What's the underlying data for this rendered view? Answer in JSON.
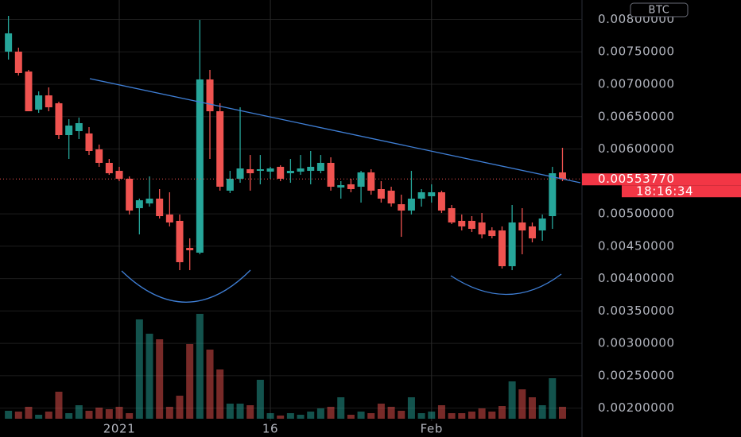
{
  "chart_data": {
    "type": "candlestick",
    "currency": "BTC",
    "categories": [
      null,
      null,
      null,
      null,
      null,
      null,
      null,
      null,
      null,
      null,
      null,
      "2021",
      null,
      null,
      null,
      null,
      null,
      null,
      null,
      null,
      null,
      null,
      null,
      null,
      null,
      null,
      "16",
      null,
      null,
      null,
      null,
      null,
      null,
      null,
      null,
      null,
      null,
      null,
      null,
      null,
      null,
      null,
      "Feb",
      null,
      null,
      null,
      null,
      null,
      null,
      null,
      null,
      null,
      null,
      null,
      null,
      null
    ],
    "open": [
      0.007503,
      0.007503,
      0.007196,
      0.006608,
      0.006828,
      0.006706,
      0.006215,
      0.006276,
      0.00624,
      0.005994,
      0.005786,
      0.005663,
      0.005541,
      0.005087,
      0.00516,
      0.005234,
      0.004989,
      0.004891,
      0.004474,
      0.0044,
      0.007074,
      0.006583,
      0.005357,
      0.005541,
      0.005688,
      0.005663,
      0.005651,
      0.005725,
      0.005626,
      0.005651,
      0.005663,
      0.005663,
      0.005786,
      0.005406,
      0.005455,
      0.005418,
      0.005639,
      0.005381,
      0.005357,
      0.005148,
      0.00505,
      0.005234,
      0.005271,
      0.005332,
      0.005087,
      0.004891,
      0.004891,
      0.004866,
      0.004743,
      0.004743,
      0.004191,
      0.004866,
      0.004805,
      0.004743,
      0.004964,
      0.005639
    ],
    "high": [
      0.008055,
      0.007564,
      0.007221,
      0.00689,
      0.006951,
      0.00673,
      0.00646,
      0.006485,
      0.006338,
      0.006068,
      0.005847,
      0.005725,
      0.005577,
      0.005234,
      0.005577,
      0.005381,
      0.005332,
      0.004989,
      0.004621,
      0.007993,
      0.007221,
      0.006706,
      0.005663,
      0.006644,
      0.005908,
      0.005908,
      0.005725,
      0.005749,
      0.005847,
      0.005908,
      0.00597,
      0.005908,
      0.005872,
      0.005504,
      0.005541,
      0.005663,
      0.005688,
      0.005504,
      0.005418,
      0.005295,
      0.005663,
      0.005381,
      0.005455,
      0.005357,
      0.005136,
      0.004989,
      0.004964,
      0.005013,
      0.004792,
      0.004805,
      0.005136,
      0.005087,
      0.004866,
      0.004989,
      0.005725,
      0.006019
    ],
    "low": [
      0.00738,
      0.007135,
      0.006583,
      0.006558,
      0.006583,
      0.006154,
      0.005847,
      0.006154,
      0.005908,
      0.005725,
      0.005602,
      0.005504,
      0.004989,
      0.004682,
      0.005111,
      0.004927,
      0.004805,
      0.00413,
      0.00413,
      0.004375,
      0.005847,
      0.005357,
      0.00532,
      0.005479,
      0.005357,
      0.005455,
      0.005541,
      0.005504,
      0.005479,
      0.005602,
      0.005455,
      0.005626,
      0.005357,
      0.005234,
      0.005332,
      0.005173,
      0.005295,
      0.005173,
      0.005111,
      0.004645,
      0.004989,
      0.005111,
      0.005173,
      0.005013,
      0.004842,
      0.004743,
      0.004719,
      0.004621,
      0.004621,
      0.004155,
      0.00413,
      0.004375,
      0.004559,
      0.004584,
      0.004768,
      0.005504
    ],
    "close": [
      0.007785,
      0.007172,
      0.006583,
      0.006828,
      0.006644,
      0.006215,
      0.006362,
      0.006399,
      0.00597,
      0.005786,
      0.005626,
      0.005541,
      0.00505,
      0.005209,
      0.005234,
      0.004964,
      0.004866,
      0.004253,
      0.004437,
      0.007074,
      0.006583,
      0.005418,
      0.005541,
      0.0057,
      0.005626,
      0.005688,
      0.0057,
      0.005541,
      0.005663,
      0.0057,
      0.005725,
      0.005786,
      0.005418,
      0.005442,
      0.005381,
      0.005639,
      0.005357,
      0.005234,
      0.00516,
      0.00505,
      0.005234,
      0.005332,
      0.005332,
      0.00505,
      0.004866,
      0.004805,
      0.004768,
      0.004682,
      0.004657,
      0.004191,
      0.004866,
      0.004743,
      0.004621,
      0.004927,
      0.005626,
      0.0055377
    ],
    "volume": [
      10,
      9,
      15,
      5,
      9,
      34,
      7,
      17,
      10,
      14,
      12,
      15,
      7,
      125,
      107,
      100,
      15,
      29,
      94,
      132,
      87,
      62,
      19,
      19,
      17,
      49,
      7,
      4,
      7,
      5,
      9,
      13,
      15,
      27,
      5,
      9,
      7,
      19,
      15,
      10,
      27,
      7,
      9,
      17,
      7,
      7,
      9,
      13,
      9,
      16,
      47,
      37,
      27,
      17,
      51,
      15
    ],
    "vlim": [
      0,
      140
    ],
    "up_color": "#26a69a",
    "down_color": "#ef5350",
    "ylim": [
      0.0018,
      0.0083
    ],
    "yticks": [
      {
        "value": 0.008,
        "label": "0.00800000"
      },
      {
        "value": 0.0075,
        "label": "0.00750000"
      },
      {
        "value": 0.007,
        "label": "0.00700000"
      },
      {
        "value": 0.0065,
        "label": "0.00650000"
      },
      {
        "value": 0.006,
        "label": "0.00600000"
      },
      {
        "value": 0.005,
        "label": "0.00500000"
      },
      {
        "value": 0.0045,
        "label": "0.00450000"
      },
      {
        "value": 0.004,
        "label": "0.00400000"
      },
      {
        "value": 0.0035,
        "label": "0.00350000"
      },
      {
        "value": 0.003,
        "label": "0.00300000"
      },
      {
        "value": 0.0025,
        "label": "0.00250000"
      },
      {
        "value": 0.002,
        "label": "0.00200000"
      }
    ],
    "last_price": {
      "value": 0.0055377,
      "label": "0.00553770"
    },
    "countdown": "18:16:34",
    "grid": true
  }
}
